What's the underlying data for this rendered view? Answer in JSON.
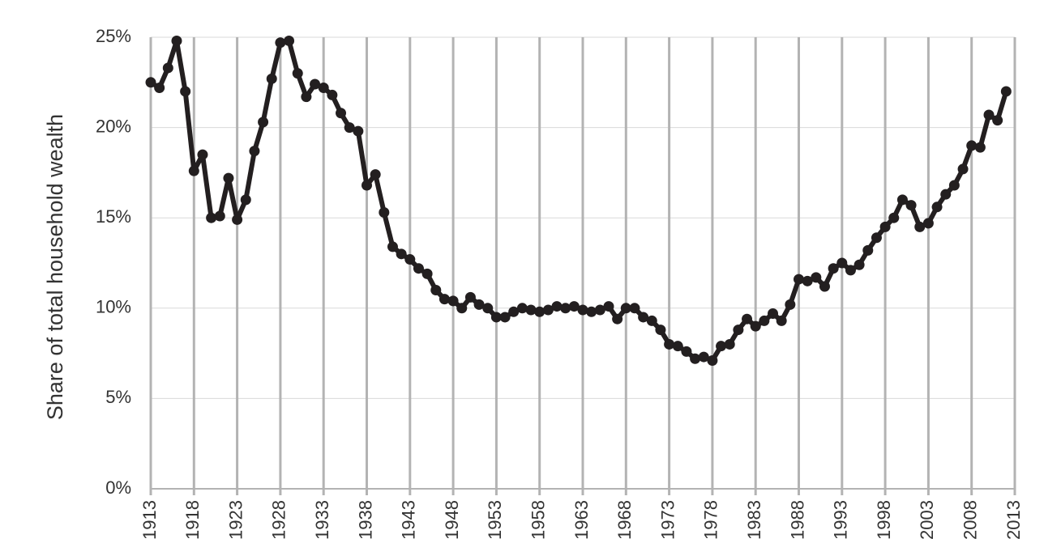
{
  "chart_data": {
    "type": "line",
    "y_label": "Share of total household wealth",
    "x": [
      1913,
      1914,
      1915,
      1916,
      1917,
      1918,
      1919,
      1920,
      1921,
      1922,
      1923,
      1924,
      1925,
      1926,
      1927,
      1928,
      1929,
      1930,
      1931,
      1932,
      1933,
      1934,
      1935,
      1936,
      1937,
      1938,
      1939,
      1940,
      1941,
      1942,
      1943,
      1944,
      1945,
      1946,
      1947,
      1948,
      1949,
      1950,
      1951,
      1952,
      1953,
      1954,
      1955,
      1956,
      1957,
      1958,
      1959,
      1960,
      1961,
      1962,
      1963,
      1964,
      1965,
      1966,
      1967,
      1968,
      1969,
      1970,
      1971,
      1972,
      1973,
      1974,
      1975,
      1976,
      1977,
      1978,
      1979,
      1980,
      1981,
      1982,
      1983,
      1984,
      1985,
      1986,
      1987,
      1988,
      1989,
      1990,
      1991,
      1992,
      1993,
      1994,
      1995,
      1996,
      1997,
      1998,
      1999,
      2000,
      2001,
      2002,
      2003,
      2004,
      2005,
      2006,
      2007,
      2008,
      2009,
      2010,
      2011,
      2012
    ],
    "values": [
      22.5,
      22.2,
      23.3,
      24.8,
      22.0,
      17.6,
      18.5,
      15.0,
      15.1,
      17.2,
      14.9,
      16.0,
      18.7,
      20.3,
      22.7,
      24.7,
      24.8,
      23.0,
      21.7,
      22.4,
      22.2,
      21.8,
      20.8,
      20.0,
      19.8,
      16.8,
      17.4,
      15.3,
      13.4,
      13.0,
      12.7,
      12.2,
      11.9,
      11.0,
      10.5,
      10.4,
      10.0,
      10.6,
      10.2,
      10.0,
      9.5,
      9.5,
      9.8,
      10.0,
      9.9,
      9.8,
      9.9,
      10.1,
      10.0,
      10.1,
      9.9,
      9.8,
      9.9,
      10.1,
      9.4,
      10.0,
      10.0,
      9.5,
      9.3,
      8.8,
      8.0,
      7.9,
      7.6,
      7.2,
      7.3,
      7.1,
      7.9,
      8.0,
      8.8,
      9.4,
      9.0,
      9.3,
      9.7,
      9.3,
      10.2,
      11.6,
      11.5,
      11.7,
      11.2,
      12.2,
      12.5,
      12.1,
      12.4,
      13.2,
      13.9,
      14.5,
      15.0,
      16.0,
      15.7,
      14.5,
      14.7,
      15.6,
      16.3,
      16.8,
      17.7,
      19.0,
      18.9,
      20.7,
      20.4,
      22.0
    ],
    "color": "#231f20",
    "xlim": [
      1913,
      2013
    ],
    "xticks": [
      1913,
      1918,
      1923,
      1928,
      1933,
      1938,
      1943,
      1948,
      1953,
      1958,
      1963,
      1968,
      1973,
      1978,
      1983,
      1988,
      1993,
      1998,
      2003,
      2008,
      2013
    ],
    "ylim": [
      0,
      25
    ],
    "yticks": [
      {
        "value": 0,
        "label": "0%"
      },
      {
        "value": 5,
        "label": "5%"
      },
      {
        "value": 10,
        "label": "10%"
      },
      {
        "value": 15,
        "label": "15%"
      },
      {
        "value": 20,
        "label": "20%"
      },
      {
        "value": 25,
        "label": "25%"
      }
    ],
    "grid": true
  }
}
